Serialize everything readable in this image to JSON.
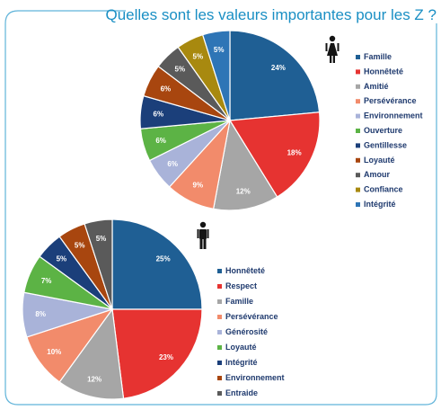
{
  "title": "Quelles sont les valeurs importantes pour les Z ?",
  "colors": {
    "frame": "#5fb3d9",
    "title": "#1a8fc4",
    "legend_text": "#1f3a6e",
    "slice_border": "#ffffff"
  },
  "icons": {
    "female": "female-person-icon",
    "male": "male-person-icon"
  },
  "chart_data": [
    {
      "type": "pie",
      "subject": "female",
      "start": "12 o'clock, clockwise",
      "legend_position": "right",
      "slices": [
        {
          "label": "Famille",
          "value": 24,
          "value_label": "24%",
          "color": "#1f5f94"
        },
        {
          "label": "Honnêteté",
          "value": 18,
          "value_label": "18%",
          "color": "#e63331"
        },
        {
          "label": "Amitié",
          "value": 12,
          "value_label": "12%",
          "color": "#a6a6a6"
        },
        {
          "label": "Persévérance",
          "value": 9,
          "value_label": "9%",
          "color": "#f28b6b"
        },
        {
          "label": "Environnement",
          "value": 6,
          "value_label": "6%",
          "color": "#a9b3d9"
        },
        {
          "label": "Ouverture",
          "value": 6,
          "value_label": "6%",
          "color": "#5cb345"
        },
        {
          "label": "Gentillesse",
          "value": 6,
          "value_label": "6%",
          "color": "#1b3f7a"
        },
        {
          "label": "Loyauté",
          "value": 6,
          "value_label": "6%",
          "color": "#a8460f"
        },
        {
          "label": "Amour",
          "value": 5,
          "value_label": "5%",
          "color": "#5a5a5a"
        },
        {
          "label": "Confiance",
          "value": 5,
          "value_label": "5%",
          "color": "#a8890f"
        },
        {
          "label": "Intégrité",
          "value": 5,
          "value_label": "5%",
          "color": "#2e75b6"
        }
      ]
    },
    {
      "type": "pie",
      "subject": "male",
      "start": "12 o'clock, clockwise",
      "legend_position": "right",
      "slices": [
        {
          "label": "Honnêteté",
          "value": 25,
          "value_label": "25%",
          "color": "#1f5f94"
        },
        {
          "label": "Respect",
          "value": 23,
          "value_label": "23%",
          "color": "#e63331"
        },
        {
          "label": "Famille",
          "value": 12,
          "value_label": "12%",
          "color": "#a6a6a6"
        },
        {
          "label": "Persévérance",
          "value": 10,
          "value_label": "10%",
          "color": "#f28b6b"
        },
        {
          "label": "Générosité",
          "value": 8,
          "value_label": "8%",
          "color": "#a9b3d9"
        },
        {
          "label": "Loyauté",
          "value": 7,
          "value_label": "7%",
          "color": "#5cb345"
        },
        {
          "label": "Intégrité",
          "value": 5,
          "value_label": "5%",
          "color": "#1b3f7a"
        },
        {
          "label": "Environnement",
          "value": 5,
          "value_label": "5%",
          "color": "#a8460f"
        },
        {
          "label": "Entraide",
          "value": 5,
          "value_label": "5%",
          "color": "#5a5a5a"
        }
      ]
    }
  ]
}
